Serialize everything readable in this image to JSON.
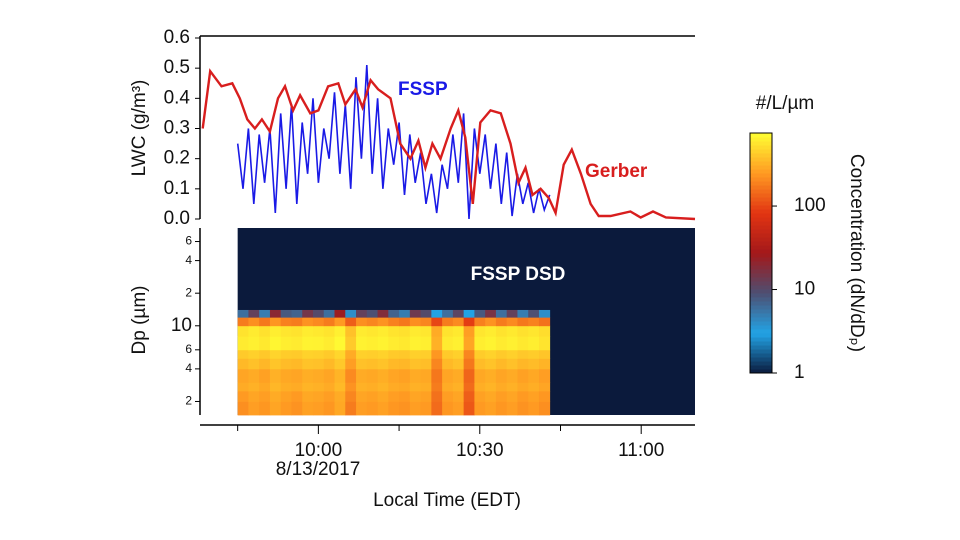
{
  "chart_data": [
    {
      "type": "line",
      "ylabel": "LWC (g/m³)",
      "xlim": [
        578,
        670
      ],
      "ylim": [
        0,
        0.6
      ],
      "yticks": [
        {
          "value": 0,
          "label": "0.0"
        },
        0.1,
        0.2,
        0.3,
        0.4,
        0.5,
        0.6
      ],
      "series": [
        {
          "name": "FSSP",
          "color": "#1a1ae6",
          "x": [
            585,
            586,
            587,
            588,
            589,
            590,
            591,
            592,
            593,
            594,
            595,
            596,
            597,
            598,
            599,
            600,
            601,
            602,
            603,
            604,
            605,
            606,
            607,
            608,
            609,
            610,
            611,
            612,
            613,
            614,
            615,
            616,
            617,
            618,
            619,
            620,
            621,
            622,
            623,
            624,
            625,
            626,
            627,
            628,
            629,
            630,
            631,
            632,
            633,
            634,
            635,
            636,
            637,
            638,
            639,
            640,
            641,
            642,
            643
          ],
          "values": [
            0.25,
            0.1,
            0.3,
            0.05,
            0.28,
            0.12,
            0.3,
            0.02,
            0.35,
            0.1,
            0.38,
            0.05,
            0.32,
            0.15,
            0.4,
            0.12,
            0.3,
            0.2,
            0.42,
            0.15,
            0.38,
            0.1,
            0.47,
            0.2,
            0.51,
            0.15,
            0.4,
            0.1,
            0.3,
            0.18,
            0.32,
            0.08,
            0.28,
            0.12,
            0.22,
            0.05,
            0.15,
            0.02,
            0.18,
            0.1,
            0.28,
            0.12,
            0.35,
            0.0,
            0.3,
            0.15,
            0.28,
            0.1,
            0.25,
            0.05,
            0.22,
            0.01,
            0.15,
            0.05,
            0.12,
            0.02,
            0.1,
            0.03,
            0.08
          ]
        },
        {
          "name": "Gerber",
          "color": "#d81e1e",
          "x": [
            578.5,
            579.9,
            582,
            584,
            585.4,
            586.8,
            588.2,
            589.5,
            591,
            592.5,
            593.8,
            595.3,
            596.6,
            598.5,
            600,
            601.8,
            603.7,
            605,
            606.9,
            608.2,
            609.7,
            611.1,
            613.4,
            615.2,
            617.1,
            618.6,
            619.9,
            621.2,
            622.7,
            624.6,
            626,
            627.3,
            628.7,
            630.1,
            632,
            633.9,
            635.7,
            637.2,
            638.5,
            639.8,
            641.3,
            642.8,
            644.1,
            645.6,
            647.1,
            648.8,
            650.6,
            652.1,
            654.3,
            658,
            659.9,
            662.2,
            664.6,
            670
          ],
          "values": [
            0.3,
            0.49,
            0.44,
            0.45,
            0.4,
            0.33,
            0.3,
            0.33,
            0.29,
            0.4,
            0.44,
            0.36,
            0.41,
            0.35,
            0.36,
            0.44,
            0.45,
            0.38,
            0.43,
            0.37,
            0.46,
            0.43,
            0.4,
            0.25,
            0.2,
            0.26,
            0.17,
            0.25,
            0.2,
            0.3,
            0.36,
            0.27,
            0.05,
            0.32,
            0.36,
            0.35,
            0.25,
            0.12,
            0.17,
            0.08,
            0.1,
            0.07,
            0.02,
            0.18,
            0.23,
            0.15,
            0.05,
            0.01,
            0.01,
            0.025,
            0.005,
            0.025,
            0.005,
            0
          ]
        }
      ]
    },
    {
      "type": "heatmap",
      "title": "FSSP DSD",
      "ylabel": "Dp (µm)",
      "xlabel": "Local Time (EDT)",
      "date": "8/13/2017",
      "xlim": [
        578,
        670
      ],
      "xticks": [
        {
          "value": 600,
          "label": "10:00"
        },
        {
          "value": 630,
          "label": "10:30"
        },
        {
          "value": 660,
          "label": "11:00"
        }
      ],
      "xminor_ticks": [
        585,
        615,
        645
      ],
      "ylog": true,
      "ylim": [
        1.5,
        80
      ],
      "yticks": [
        2,
        4,
        6,
        10,
        {
          "value": 20,
          "label": "2"
        },
        {
          "value": 40,
          "label": "4"
        },
        {
          "value": 60,
          "label": "6"
        }
      ],
      "x_edges": [
        585,
        587,
        589,
        591,
        593,
        595,
        597,
        599,
        601,
        603,
        605,
        607,
        609,
        611,
        613,
        615,
        617,
        619,
        621,
        623,
        625,
        627,
        629,
        631,
        633,
        635,
        637,
        639,
        641,
        643
      ],
      "y_edges": [
        1.5,
        2,
        2.5,
        3,
        4,
        5,
        6,
        8,
        10,
        12,
        14
      ],
      "z": [
        [
          220,
          260,
          240,
          280,
          250,
          230,
          270,
          260,
          240,
          290,
          180,
          260,
          250,
          270,
          240,
          230,
          260,
          250,
          150,
          240,
          260,
          120,
          250,
          270,
          240,
          260,
          230,
          250,
          220
        ],
        [
          250,
          280,
          260,
          300,
          270,
          250,
          290,
          280,
          260,
          300,
          200,
          280,
          270,
          290,
          260,
          250,
          280,
          270,
          160,
          260,
          280,
          130,
          270,
          290,
          260,
          280,
          250,
          270,
          240
        ],
        [
          300,
          320,
          290,
          340,
          310,
          300,
          330,
          320,
          300,
          350,
          230,
          320,
          310,
          330,
          300,
          290,
          320,
          310,
          180,
          300,
          320,
          150,
          310,
          330,
          300,
          320,
          290,
          310,
          280
        ],
        [
          280,
          300,
          270,
          320,
          290,
          280,
          310,
          300,
          280,
          330,
          210,
          300,
          290,
          310,
          280,
          270,
          300,
          290,
          170,
          280,
          300,
          140,
          290,
          310,
          280,
          300,
          270,
          290,
          260
        ],
        [
          350,
          380,
          340,
          400,
          360,
          350,
          390,
          380,
          350,
          410,
          260,
          380,
          370,
          390,
          350,
          340,
          380,
          370,
          200,
          350,
          380,
          170,
          360,
          390,
          350,
          380,
          340,
          360,
          330
        ],
        [
          420,
          450,
          410,
          470,
          430,
          420,
          460,
          450,
          420,
          480,
          300,
          450,
          440,
          460,
          420,
          410,
          450,
          440,
          240,
          420,
          450,
          200,
          430,
          460,
          420,
          450,
          410,
          430,
          400
        ],
        [
          600,
          640,
          590,
          680,
          620,
          600,
          660,
          650,
          610,
          700,
          420,
          650,
          630,
          660,
          610,
          590,
          650,
          630,
          320,
          600,
          640,
          280,
          620,
          660,
          600,
          640,
          590,
          620,
          560
        ],
        [
          550,
          600,
          540,
          620,
          570,
          550,
          610,
          590,
          560,
          640,
          380,
          600,
          580,
          610,
          560,
          540,
          600,
          580,
          300,
          550,
          590,
          260,
          570,
          610,
          550,
          590,
          540,
          570,
          520
        ],
        [
          180,
          220,
          170,
          240,
          190,
          180,
          230,
          210,
          180,
          250,
          130,
          220,
          200,
          230,
          190,
          170,
          220,
          200,
          100,
          180,
          210,
          90,
          190,
          230,
          180,
          210,
          170,
          190,
          160
        ],
        [
          6,
          12,
          5,
          20,
          8,
          7,
          15,
          10,
          6,
          25,
          4,
          12,
          9,
          18,
          7,
          5,
          14,
          10,
          3,
          6,
          11,
          3,
          8,
          16,
          6,
          12,
          5,
          9,
          4
        ]
      ],
      "zlog": true,
      "zlim": [
        1,
        750
      ],
      "zticks": [
        1,
        10,
        100
      ],
      "colormap": [
        "#0b1a3c",
        "#22a4e6",
        "#4d4f72",
        "#a3181a",
        "#e23412",
        "#ff9a22",
        "#ffff33"
      ],
      "colorbar_units": "#/L/µm",
      "colorbar_label": "Concentration (dN/dDₚ)"
    }
  ]
}
